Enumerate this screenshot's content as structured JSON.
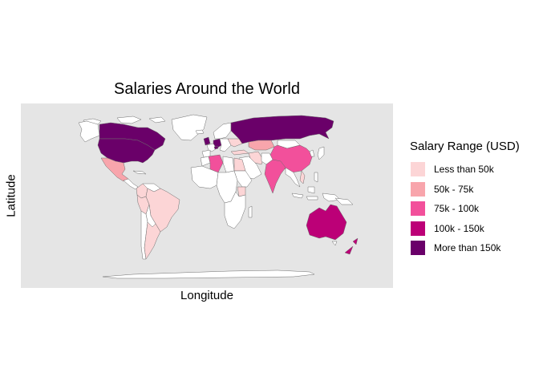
{
  "title": "Salaries Around the World",
  "xlabel": "Longitude",
  "ylabel": "Latitude",
  "legend": {
    "title": "Salary Range (USD)",
    "items": [
      {
        "label": "Less than 50k",
        "color": "#fcd5d6"
      },
      {
        "label": "50k - 75k",
        "color": "#f8a5ac"
      },
      {
        "label": "75k - 100k",
        "color": "#f2509b"
      },
      {
        "label": "100k - 150k",
        "color": "#bc0077"
      },
      {
        "label": "More than 150k",
        "color": "#6a0069"
      }
    ]
  },
  "colors": {
    "panel_bg": "#e5e5e5",
    "land_default": "#ffffff",
    "border": "#6e6e6e"
  },
  "map_data": {
    "type": "choropleth",
    "regions": [
      {
        "region": "Canada",
        "range": "More than 150k"
      },
      {
        "region": "United States",
        "range": "More than 150k"
      },
      {
        "region": "Russia",
        "range": "More than 150k"
      },
      {
        "region": "United Kingdom",
        "range": "More than 150k"
      },
      {
        "region": "Germany",
        "range": "More than 150k"
      },
      {
        "region": "Switzerland",
        "range": "More than 150k"
      },
      {
        "region": "Australia",
        "range": "100k - 150k"
      },
      {
        "region": "New Zealand",
        "range": "100k - 150k"
      },
      {
        "region": "China",
        "range": "75k - 100k"
      },
      {
        "region": "India",
        "range": "75k - 100k"
      },
      {
        "region": "Algeria",
        "range": "75k - 100k"
      },
      {
        "region": "Mexico",
        "range": "50k - 75k"
      },
      {
        "region": "Kazakhstan",
        "range": "50k - 75k"
      },
      {
        "region": "Brazil",
        "range": "Less than 50k"
      },
      {
        "region": "Colombia",
        "range": "Less than 50k"
      },
      {
        "region": "Argentina",
        "range": "Less than 50k"
      },
      {
        "region": "Peru",
        "range": "Less than 50k"
      },
      {
        "region": "Ukraine",
        "range": "Less than 50k"
      },
      {
        "region": "Turkey",
        "range": "Less than 50k"
      },
      {
        "region": "Iran",
        "range": "Less than 50k"
      },
      {
        "region": "Egypt",
        "range": "Less than 50k"
      },
      {
        "region": "Kenya",
        "range": "Less than 50k"
      },
      {
        "region": "Vietnam",
        "range": "Less than 50k"
      }
    ]
  }
}
